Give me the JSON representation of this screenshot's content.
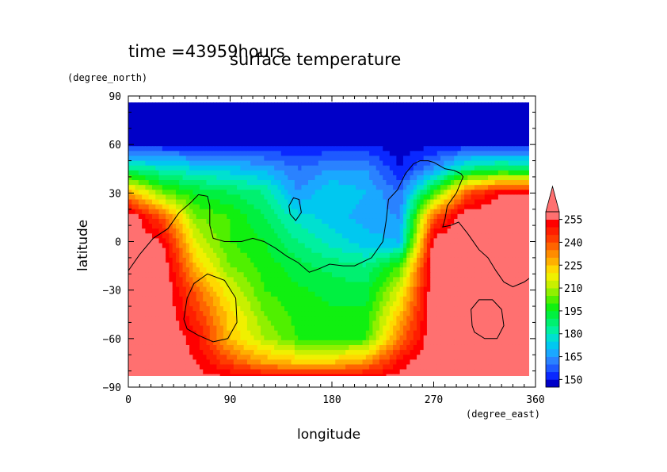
{
  "chart_data": {
    "type": "heatmap",
    "title": "surface temperature",
    "subtitle": "time =43959hours",
    "xlabel": "longitude",
    "ylabel": "latitude",
    "x_units": "(degree_east)",
    "y_units": "(degree_north)",
    "xlim": [
      0,
      360
    ],
    "ylim": [
      -90,
      90
    ],
    "x_ticks": [
      "0",
      "90",
      "180",
      "270",
      "360"
    ],
    "y_ticks": [
      "90",
      "60",
      "30",
      "0",
      "−30",
      "−60",
      "−90"
    ],
    "colorbar": {
      "levels": [
        145,
        150,
        155,
        160,
        165,
        170,
        175,
        180,
        185,
        190,
        195,
        200,
        205,
        210,
        215,
        220,
        225,
        230,
        235,
        240,
        245,
        250,
        255,
        260
      ],
      "tick_labels": [
        "150",
        "165",
        "180",
        "195",
        "210",
        "225",
        "240",
        "255"
      ],
      "colors": [
        "#0000c8",
        "#0a28ff",
        "#1e5aff",
        "#2a82ff",
        "#1aa8ff",
        "#00c8f0",
        "#00e0d0",
        "#00f0a0",
        "#00f070",
        "#00f040",
        "#10f010",
        "#50f000",
        "#90f000",
        "#c8f000",
        "#f0f000",
        "#ffd800",
        "#ffb000",
        "#ff8c00",
        "#ff6400",
        "#ff3c00",
        "#ff1e00",
        "#ff0000",
        "#ff7070"
      ],
      "over_color": "#ff7070",
      "extend": "max"
    },
    "field_samples": {
      "description_units": "K",
      "lon": [
        0,
        30,
        60,
        90,
        120,
        150,
        180,
        210,
        240,
        270,
        300,
        330,
        360
      ],
      "lat": [
        85,
        60,
        45,
        30,
        15,
        0,
        -15,
        -30,
        -45,
        -60,
        -75,
        -85
      ],
      "values": [
        [
          148,
          148,
          148,
          148,
          148,
          148,
          148,
          148,
          148,
          148,
          148,
          148,
          148
        ],
        [
          150,
          150,
          150,
          150,
          150,
          150,
          150,
          150,
          147,
          148,
          150,
          150,
          150
        ],
        [
          185,
          180,
          175,
          172,
          168,
          160,
          165,
          165,
          150,
          165,
          185,
          190,
          185
        ],
        [
          230,
          205,
          195,
          190,
          185,
          165,
          175,
          170,
          160,
          200,
          240,
          255,
          255
        ],
        [
          262,
          240,
          205,
          200,
          190,
          178,
          172,
          168,
          165,
          240,
          262,
          262,
          262
        ],
        [
          262,
          255,
          215,
          200,
          195,
          185,
          178,
          172,
          170,
          258,
          262,
          262,
          262
        ],
        [
          262,
          262,
          225,
          205,
          198,
          192,
          188,
          185,
          200,
          262,
          262,
          262,
          262
        ],
        [
          262,
          262,
          238,
          215,
          200,
          196,
          193,
          192,
          215,
          262,
          262,
          262,
          262
        ],
        [
          262,
          262,
          245,
          222,
          205,
          198,
          196,
          196,
          225,
          262,
          262,
          262,
          262
        ],
        [
          262,
          262,
          252,
          225,
          210,
          200,
          198,
          200,
          235,
          262,
          262,
          262,
          262
        ],
        [
          262,
          262,
          255,
          242,
          230,
          225,
          225,
          232,
          252,
          262,
          262,
          262,
          262
        ],
        [
          262,
          262,
          258,
          256,
          256,
          256,
          256,
          256,
          258,
          262,
          262,
          262,
          262
        ]
      ]
    },
    "coastlines": [
      [
        [
          0,
          -18
        ],
        [
          10,
          -8
        ],
        [
          22,
          2
        ],
        [
          35,
          8
        ],
        [
          45,
          18
        ],
        [
          55,
          24
        ],
        [
          62,
          29
        ],
        [
          70,
          28
        ],
        [
          72,
          22
        ],
        [
          72,
          10
        ],
        [
          75,
          2
        ],
        [
          85,
          0
        ],
        [
          100,
          0
        ],
        [
          110,
          2
        ],
        [
          120,
          0
        ],
        [
          130,
          -4
        ],
        [
          140,
          -9
        ],
        [
          150,
          -13
        ],
        [
          160,
          -19
        ],
        [
          168,
          -17
        ],
        [
          178,
          -14
        ],
        [
          190,
          -15
        ],
        [
          200,
          -15
        ],
        [
          215,
          -10
        ],
        [
          225,
          0
        ],
        [
          228,
          13
        ],
        [
          230,
          26
        ],
        [
          238,
          32
        ],
        [
          245,
          42
        ],
        [
          252,
          48
        ],
        [
          258,
          50
        ],
        [
          265,
          50
        ],
        [
          270,
          49
        ],
        [
          280,
          45
        ],
        [
          288,
          44
        ],
        [
          294,
          42
        ],
        [
          296,
          40
        ],
        [
          290,
          30
        ],
        [
          282,
          22
        ],
        [
          280,
          14
        ],
        [
          278,
          9
        ],
        [
          285,
          10
        ],
        [
          292,
          12
        ],
        [
          300,
          5
        ],
        [
          310,
          -5
        ],
        [
          318,
          -10
        ],
        [
          325,
          -18
        ],
        [
          332,
          -25
        ],
        [
          340,
          -28
        ],
        [
          350,
          -25
        ],
        [
          360,
          -20
        ]
      ],
      [
        [
          49,
          -48
        ],
        [
          52,
          -35
        ],
        [
          58,
          -26
        ],
        [
          70,
          -20
        ],
        [
          85,
          -24
        ],
        [
          95,
          -35
        ],
        [
          96,
          -50
        ],
        [
          88,
          -60
        ],
        [
          75,
          -62
        ],
        [
          62,
          -58
        ],
        [
          52,
          -54
        ],
        [
          49,
          -48
        ]
      ],
      [
        [
          142,
          22
        ],
        [
          146,
          27
        ],
        [
          151,
          26
        ],
        [
          153,
          18
        ],
        [
          148,
          13
        ],
        [
          143,
          17
        ],
        [
          142,
          22
        ]
      ],
      [
        [
          304,
          -52
        ],
        [
          303,
          -42
        ],
        [
          310,
          -36
        ],
        [
          322,
          -36
        ],
        [
          330,
          -42
        ],
        [
          332,
          -52
        ],
        [
          326,
          -60
        ],
        [
          315,
          -60
        ],
        [
          306,
          -56
        ],
        [
          304,
          -52
        ]
      ]
    ]
  }
}
